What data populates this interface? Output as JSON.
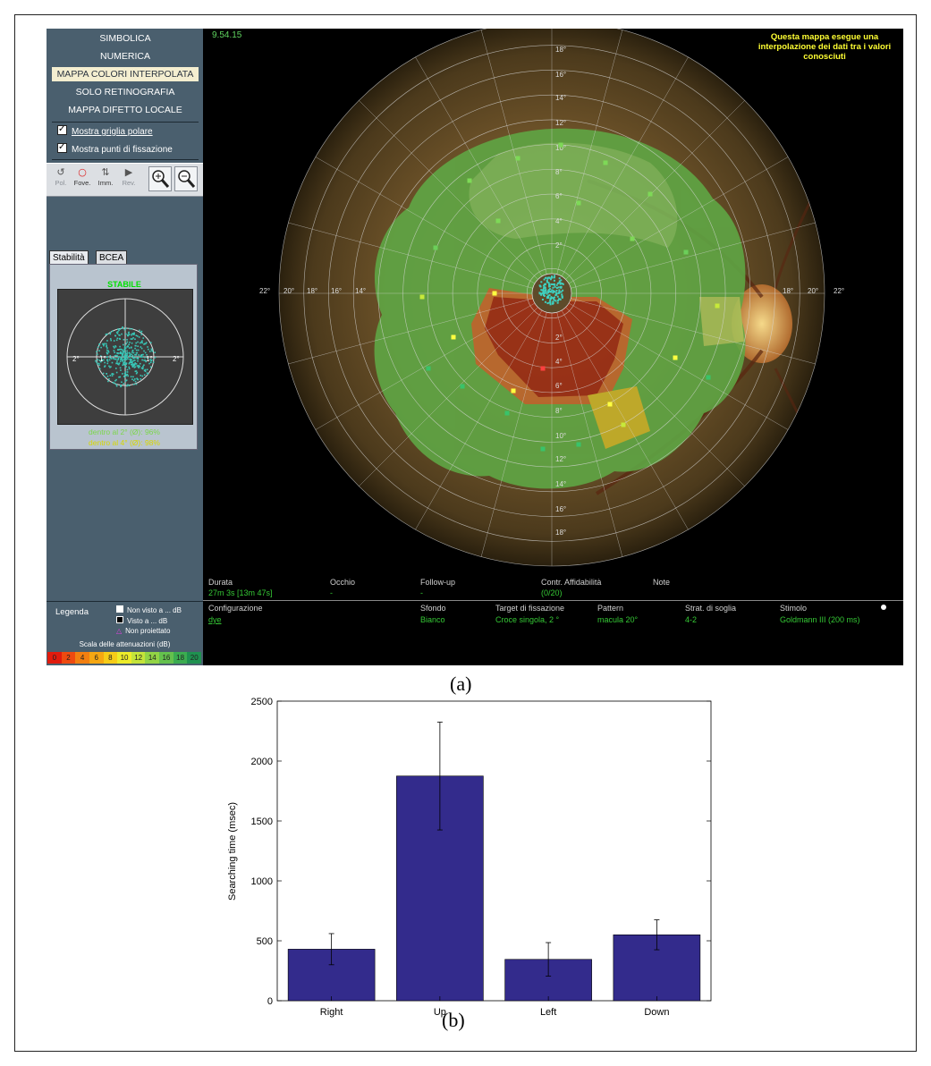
{
  "panel_a": {
    "caption": "(a)",
    "menu": [
      {
        "label": "SIMBOLICA",
        "active": false
      },
      {
        "label": "NUMERICA",
        "active": false
      },
      {
        "label": "MAPPA COLORI INTERPOLATA",
        "active": true
      },
      {
        "label": "SOLO RETINOGRAFIA",
        "active": false
      },
      {
        "label": "MAPPA DIFETTO LOCALE",
        "active": false
      }
    ],
    "checkboxes": [
      {
        "label": "Mostra griglia polare",
        "checked": true
      },
      {
        "label": "Mostra punti di fissazione",
        "checked": true
      }
    ],
    "toolbar": [
      {
        "label": "Pol.",
        "icon": "rotate-icon"
      },
      {
        "label": "Fove.",
        "icon": "fovea-circle-icon"
      },
      {
        "label": "Imm.",
        "icon": "adjust-icon"
      },
      {
        "label": "Rev.",
        "icon": "play-icon"
      }
    ],
    "tabs": [
      "Stabilità",
      "BCEA"
    ],
    "stability": {
      "status": "STABILE",
      "axis_labels": [
        "2°",
        "1°",
        "1°",
        "2°"
      ],
      "within_2": "dentro al 2° (Ø): 96%",
      "within_4": "dentro al 4° (Ø): 98%"
    },
    "legend": {
      "title": "Legenda",
      "items": [
        "Non visto a ... dB",
        "Visto a ... dB",
        "Non proiettato"
      ],
      "scale_title": "Scala delle attenuazioni (dB)",
      "scale": [
        "0",
        "2",
        "4",
        "6",
        "8",
        "10",
        "12",
        "14",
        "16",
        "18",
        "20"
      ],
      "scale_colors": [
        "#e11b0d",
        "#ee4a10",
        "#f27f10",
        "#f5a712",
        "#f6cc18",
        "#ecec2a",
        "#c4e43a",
        "#92d445",
        "#64c14d",
        "#3bac50",
        "#1f9150"
      ]
    },
    "timestamp": "9.54.15",
    "note": "Questa mappa esegue una interpolazione dei dati tra i valori conosciuti",
    "grid_labels": {
      "vertical": [
        "18°",
        "16°",
        "14°",
        "12°",
        "10°",
        "8°",
        "6°",
        "4°",
        "2°",
        "2°",
        "4°",
        "6°",
        "8°",
        "10°",
        "12°",
        "14°",
        "16°",
        "18°"
      ],
      "horizontal_left": [
        "22°",
        "20°",
        "18°",
        "16°",
        "14°"
      ],
      "horizontal_right": [
        "18°",
        "20°",
        "22°"
      ]
    },
    "info": {
      "duration_label": "Durata",
      "duration_value": "27m 3s [13m 47s]",
      "eye_label": "Occhio",
      "eye_value": "-",
      "followup_label": "Follow-up",
      "followup_value": "-",
      "reliability_label": "Contr. Affidabilità",
      "reliability_value": "(0/20)",
      "notes_label": "Note",
      "config_label": "Configurazione",
      "config_value": "dye",
      "background_label": "Sfondo",
      "background_value": "Bianco",
      "target_label": "Target di fissazione",
      "target_value": "Croce singola, 2 °",
      "pattern_label": "Pattern",
      "pattern_value": "macula 20°",
      "strategy_label": "Strat. di soglia",
      "strategy_value": "4-2",
      "stimulus_label": "Stimolo",
      "stimulus_value": "Goldmann III (200 ms)"
    }
  },
  "panel_b": {
    "caption": "(b)",
    "chart_data": {
      "type": "bar",
      "categories": [
        "Right",
        "Up",
        "Left",
        "Down"
      ],
      "values": [
        430,
        1875,
        345,
        550
      ],
      "errors": [
        130,
        450,
        140,
        125
      ],
      "ylabel": "Searching time (msec)",
      "xlabel": "",
      "ylim": [
        0,
        2500
      ],
      "yticks": [
        0,
        500,
        1000,
        1500,
        2000,
        2500
      ],
      "bar_color": "#332b8c",
      "grid": false
    }
  }
}
